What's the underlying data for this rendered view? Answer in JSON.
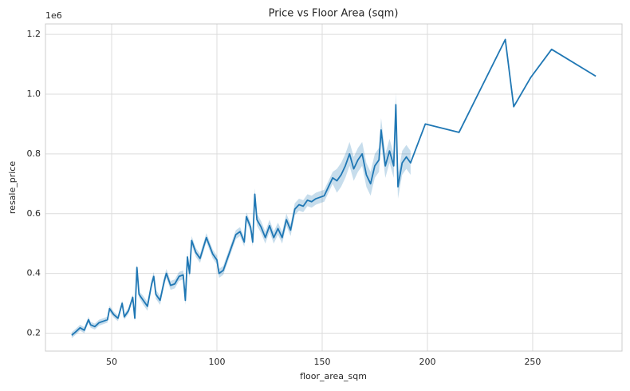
{
  "chart_data": {
    "type": "line",
    "title": "Price vs Floor Area (sqm)",
    "x_label": "floor_area_sqm",
    "y_label": "resale_price",
    "y_offset_label": "1e6",
    "grid": true,
    "xlim": [
      18.55,
      292.45
    ],
    "xticks": [
      50,
      100,
      150,
      200,
      250
    ],
    "ylim": [
      140000,
      1235000
    ],
    "yticks": [
      {
        "value": 200000,
        "label": "0.2"
      },
      {
        "value": 400000,
        "label": "0.4"
      },
      {
        "value": 600000,
        "label": "0.6"
      },
      {
        "value": 800000,
        "label": "0.8"
      },
      {
        "value": 1000000,
        "label": "1.0"
      },
      {
        "value": 1200000,
        "label": "1.2"
      }
    ],
    "x": [
      31,
      33,
      35,
      37,
      39,
      40,
      42,
      44,
      46,
      48,
      49,
      51,
      53,
      55,
      56,
      58,
      60,
      61,
      62,
      63,
      65,
      67,
      69,
      70,
      71,
      73,
      75,
      76,
      78,
      80,
      82,
      84,
      85,
      86,
      87,
      88,
      90,
      92,
      95,
      98,
      100,
      101,
      103,
      105,
      107,
      109,
      111,
      113,
      114,
      116,
      117,
      118,
      119,
      121,
      123,
      125,
      127,
      129,
      131,
      133,
      135,
      137,
      139,
      141,
      143,
      145,
      147,
      149,
      151,
      153,
      155,
      157,
      159,
      161,
      163,
      165,
      167,
      169,
      171,
      173,
      175,
      177,
      178,
      180,
      182,
      184,
      185,
      186,
      188,
      190,
      192,
      199,
      215,
      237,
      241,
      249,
      259,
      280
    ],
    "series": [
      {
        "color": "#1f77b4",
        "values": [
          193000,
          205000,
          218000,
          210000,
          245000,
          228000,
          222000,
          235000,
          240000,
          245000,
          282000,
          262000,
          250000,
          300000,
          255000,
          275000,
          320000,
          250000,
          420000,
          330000,
          310000,
          290000,
          365000,
          390000,
          330000,
          310000,
          375000,
          400000,
          360000,
          365000,
          390000,
          395000,
          310000,
          455000,
          400000,
          510000,
          470000,
          450000,
          520000,
          465000,
          445000,
          400000,
          410000,
          450000,
          490000,
          530000,
          540000,
          505000,
          590000,
          555000,
          505000,
          665000,
          580000,
          555000,
          520000,
          560000,
          520000,
          550000,
          520000,
          580000,
          545000,
          615000,
          630000,
          625000,
          645000,
          640000,
          650000,
          655000,
          660000,
          690000,
          720000,
          710000,
          730000,
          760000,
          800000,
          750000,
          780000,
          800000,
          730000,
          700000,
          760000,
          780000,
          880000,
          760000,
          810000,
          760000,
          965000,
          690000,
          770000,
          790000,
          770000,
          900000,
          872000,
          1183000,
          958000,
          1055000,
          1150000,
          1060000
        ],
        "lower": [
          183000,
          195000,
          208000,
          200000,
          235000,
          218000,
          212000,
          225000,
          230000,
          235000,
          272000,
          252000,
          240000,
          290000,
          245000,
          265000,
          310000,
          240000,
          410000,
          320000,
          295000,
          275000,
          350000,
          375000,
          315000,
          295000,
          360000,
          385000,
          345000,
          350000,
          375000,
          380000,
          295000,
          440000,
          385000,
          495000,
          455000,
          435000,
          505000,
          450000,
          430000,
          385000,
          395000,
          435000,
          475000,
          515000,
          525000,
          490000,
          575000,
          540000,
          490000,
          645000,
          560000,
          535000,
          500000,
          540000,
          500000,
          530000,
          500000,
          560000,
          525000,
          595000,
          610000,
          605000,
          625000,
          620000,
          630000,
          635000,
          640000,
          670000,
          700000,
          670000,
          690000,
          720000,
          760000,
          710000,
          740000,
          760000,
          690000,
          660000,
          720000,
          740000,
          840000,
          720000,
          770000,
          720000,
          925000,
          650000,
          730000,
          750000,
          730000,
          null,
          null,
          null,
          null,
          null,
          null,
          null
        ],
        "upper": [
          203000,
          215000,
          228000,
          220000,
          255000,
          238000,
          232000,
          245000,
          250000,
          255000,
          292000,
          272000,
          260000,
          310000,
          265000,
          285000,
          330000,
          260000,
          430000,
          340000,
          325000,
          305000,
          380000,
          405000,
          345000,
          325000,
          390000,
          415000,
          375000,
          380000,
          405000,
          410000,
          325000,
          470000,
          415000,
          525000,
          485000,
          465000,
          535000,
          480000,
          460000,
          415000,
          425000,
          465000,
          505000,
          545000,
          555000,
          520000,
          605000,
          570000,
          520000,
          685000,
          600000,
          575000,
          540000,
          580000,
          540000,
          570000,
          540000,
          600000,
          565000,
          635000,
          650000,
          645000,
          665000,
          660000,
          670000,
          675000,
          680000,
          710000,
          740000,
          750000,
          770000,
          800000,
          840000,
          790000,
          820000,
          840000,
          770000,
          740000,
          800000,
          820000,
          920000,
          800000,
          850000,
          800000,
          1005000,
          730000,
          810000,
          830000,
          810000,
          null,
          null,
          null,
          null,
          null,
          null,
          null
        ]
      }
    ]
  }
}
